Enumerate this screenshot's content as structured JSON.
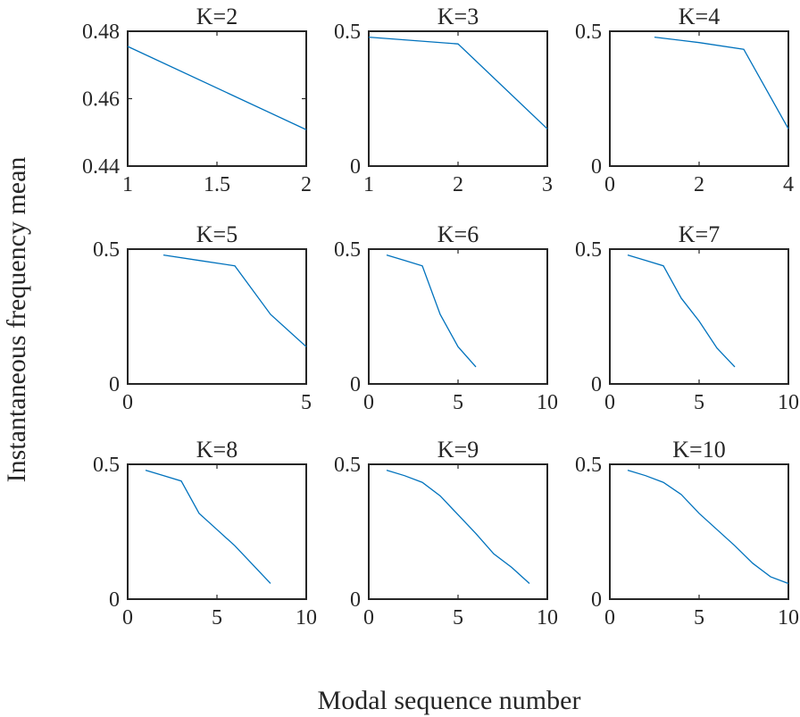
{
  "figure": {
    "xlabel": "Modal sequence number",
    "ylabel": "Instantaneous frequency mean"
  },
  "colors": {
    "line": "#0072BD",
    "axis": "#262626"
  },
  "chart_data": [
    {
      "type": "line",
      "title": "K=2",
      "x": [
        1,
        2
      ],
      "y": [
        0.4755,
        0.4508
      ],
      "xlim": [
        1,
        2
      ],
      "ylim": [
        0.44,
        0.48
      ],
      "xticks": [
        1,
        1.5,
        2
      ],
      "xticklabels": [
        "1",
        "1.5",
        "2"
      ],
      "yticks": [
        0.44,
        0.46,
        0.48
      ],
      "yticklabels": [
        "0.44",
        "0.46",
        "0.48"
      ]
    },
    {
      "type": "line",
      "title": "K=3",
      "x": [
        1,
        2,
        3
      ],
      "y": [
        0.478,
        0.453,
        0.138
      ],
      "xlim": [
        1,
        3
      ],
      "ylim": [
        0,
        0.5
      ],
      "xticks": [
        1,
        2,
        3
      ],
      "xticklabels": [
        "1",
        "2",
        "3"
      ],
      "yticks": [
        0,
        0.5
      ],
      "yticklabels": [
        "0",
        "0.5"
      ]
    },
    {
      "type": "line",
      "title": "K=4",
      "x": [
        1,
        2,
        3,
        4
      ],
      "y": [
        0.478,
        0.458,
        0.433,
        0.138
      ],
      "xlim": [
        0,
        4
      ],
      "ylim": [
        0,
        0.5
      ],
      "xticks": [
        0,
        2,
        4
      ],
      "xticklabels": [
        "0",
        "2",
        "4"
      ],
      "yticks": [
        0,
        0.5
      ],
      "yticklabels": [
        "0",
        "0.5"
      ]
    },
    {
      "type": "line",
      "title": "K=5",
      "x": [
        1,
        2,
        3,
        4,
        5
      ],
      "y": [
        0.478,
        0.458,
        0.438,
        0.258,
        0.138
      ],
      "xlim": [
        0,
        5
      ],
      "ylim": [
        0,
        0.5
      ],
      "xticks": [
        0,
        5
      ],
      "xticklabels": [
        "0",
        "5"
      ],
      "yticks": [
        0,
        0.5
      ],
      "yticklabels": [
        "0",
        "0.5"
      ]
    },
    {
      "type": "line",
      "title": "K=6",
      "x": [
        1,
        2,
        3,
        4,
        5,
        6
      ],
      "y": [
        0.478,
        0.458,
        0.438,
        0.258,
        0.138,
        0.063
      ],
      "xlim": [
        0,
        10
      ],
      "ylim": [
        0,
        0.5
      ],
      "xticks": [
        0,
        5,
        10
      ],
      "xticklabels": [
        "0",
        "5",
        "10"
      ],
      "yticks": [
        0,
        0.5
      ],
      "yticklabels": [
        "0",
        "0.5"
      ]
    },
    {
      "type": "line",
      "title": "K=7",
      "x": [
        1,
        2,
        3,
        4,
        5,
        6,
        7
      ],
      "y": [
        0.478,
        0.458,
        0.438,
        0.318,
        0.233,
        0.133,
        0.063
      ],
      "xlim": [
        0,
        10
      ],
      "ylim": [
        0,
        0.5
      ],
      "xticks": [
        0,
        5,
        10
      ],
      "xticklabels": [
        "0",
        "5",
        "10"
      ],
      "yticks": [
        0,
        0.5
      ],
      "yticklabels": [
        "0",
        "0.5"
      ]
    },
    {
      "type": "line",
      "title": "K=8",
      "x": [
        1,
        2,
        3,
        4,
        5,
        6,
        7,
        8
      ],
      "y": [
        0.478,
        0.458,
        0.438,
        0.318,
        0.258,
        0.198,
        0.128,
        0.058
      ],
      "xlim": [
        0,
        10
      ],
      "ylim": [
        0,
        0.5
      ],
      "xticks": [
        0,
        5,
        10
      ],
      "xticklabels": [
        "0",
        "5",
        "10"
      ],
      "yticks": [
        0,
        0.5
      ],
      "yticklabels": [
        "0",
        "0.5"
      ]
    },
    {
      "type": "line",
      "title": "K=9",
      "x": [
        1,
        2,
        3,
        4,
        5,
        6,
        7,
        8,
        9
      ],
      "y": [
        0.478,
        0.458,
        0.433,
        0.383,
        0.313,
        0.243,
        0.168,
        0.118,
        0.058
      ],
      "xlim": [
        0,
        10
      ],
      "ylim": [
        0,
        0.5
      ],
      "xticks": [
        0,
        5,
        10
      ],
      "xticklabels": [
        "0",
        "5",
        "10"
      ],
      "yticks": [
        0,
        0.5
      ],
      "yticklabels": [
        "0",
        "0.5"
      ]
    },
    {
      "type": "line",
      "title": "K=10",
      "x": [
        1,
        2,
        3,
        4,
        5,
        6,
        7,
        8,
        9,
        10
      ],
      "y": [
        0.478,
        0.458,
        0.433,
        0.388,
        0.318,
        0.258,
        0.198,
        0.133,
        0.083,
        0.058
      ],
      "xlim": [
        0,
        10
      ],
      "ylim": [
        0,
        0.5
      ],
      "xticks": [
        0,
        5,
        10
      ],
      "xticklabels": [
        "0",
        "5",
        "10"
      ],
      "yticks": [
        0,
        0.5
      ],
      "yticklabels": [
        "0",
        "0.5"
      ]
    }
  ]
}
